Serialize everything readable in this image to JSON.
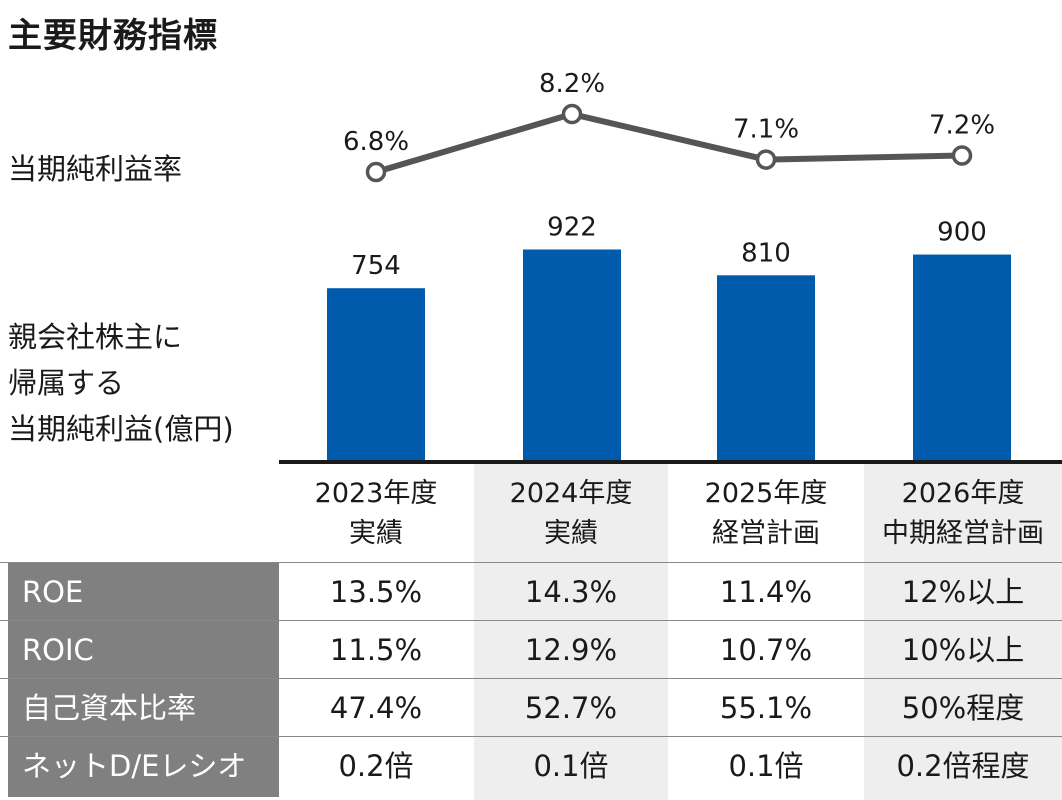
{
  "title": "主要財務指標",
  "labels": {
    "line": "当期純利益率",
    "bar": [
      "親会社株主に",
      "帰属する",
      "当期純利益(億円)"
    ]
  },
  "chart_data": {
    "type": "bar",
    "categories": [
      "2023年度 実績",
      "2024年度 実績",
      "2025年度 経営計画",
      "2026年度 中期経営計画"
    ],
    "series": [
      {
        "name": "親会社株主に帰属する当期純利益(億円)",
        "type": "bar",
        "values": [
          754,
          922,
          810,
          900
        ],
        "labels": [
          "754",
          "922",
          "810",
          "900"
        ]
      },
      {
        "name": "当期純利益率",
        "type": "line",
        "values": [
          6.8,
          8.2,
          7.1,
          7.2
        ],
        "labels": [
          "6.8%",
          "8.2%",
          "7.1%",
          "7.2%"
        ]
      }
    ],
    "colors": {
      "bar": "#005bac",
      "line": "#555555"
    }
  },
  "table": {
    "headers": [
      [
        "2023年度",
        "実績"
      ],
      [
        "2024年度",
        "実績"
      ],
      [
        "2025年度",
        "経営計画"
      ],
      [
        "2026年度",
        "中期経営計画"
      ]
    ],
    "rows": [
      {
        "label": "ROE",
        "values": [
          "13.5%",
          "14.3%",
          "11.4%",
          "12%以上"
        ]
      },
      {
        "label": "ROIC",
        "values": [
          "11.5%",
          "12.9%",
          "10.7%",
          "10%以上"
        ]
      },
      {
        "label": "自己資本比率",
        "values": [
          "47.4%",
          "52.7%",
          "55.1%",
          "50%程度"
        ]
      },
      {
        "label": "ネットD/Eレシオ",
        "values": [
          "0.2倍",
          "0.1倍",
          "0.1倍",
          "0.2倍程度"
        ]
      }
    ]
  }
}
